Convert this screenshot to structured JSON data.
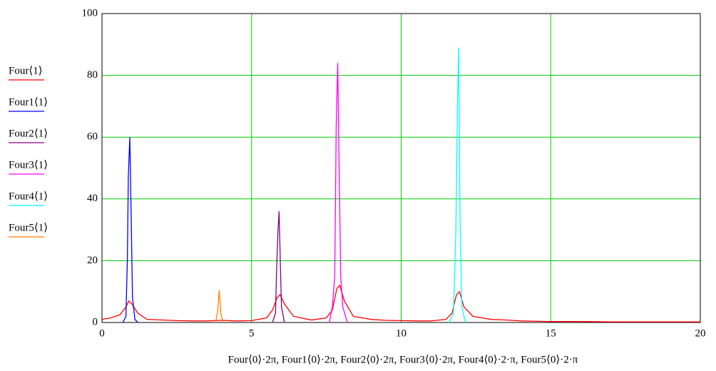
{
  "chart_data": {
    "type": "line",
    "x_label": "Four⟨0⟩·2π, Four1⟨0⟩·2π, Four2⟨0⟩·2π, Four3⟨0⟩·2π, Four4⟨0⟩·2·π, Four5⟨0⟩·2·π",
    "xlim": [
      0,
      20
    ],
    "xticks": [
      0,
      5,
      10,
      15,
      20
    ],
    "ylim": [
      0,
      100
    ],
    "yticks": [
      0,
      20,
      40,
      60,
      80,
      100
    ],
    "grid": true,
    "grid_color": "#00cc00",
    "legend": "left",
    "series": [
      {
        "name": "Four⟨1⟩",
        "color": "#ff0000",
        "x": [
          0,
          0.3,
          0.6,
          0.8,
          0.9,
          1.0,
          1.2,
          1.5,
          2,
          2.5,
          3,
          3.5,
          4,
          4.5,
          5,
          5.5,
          5.7,
          5.85,
          5.95,
          6.1,
          6.4,
          7,
          7.5,
          7.7,
          7.85,
          7.95,
          8.1,
          8.4,
          9,
          9.5,
          10,
          10.5,
          11,
          11.5,
          11.7,
          11.85,
          11.95,
          12.1,
          12.4,
          13,
          13.5,
          14,
          15,
          16,
          17,
          18,
          19,
          20
        ],
        "values": [
          1,
          1.5,
          2.5,
          5,
          7,
          6,
          3,
          1,
          0.8,
          0.6,
          0.5,
          0.5,
          0.7,
          0.5,
          0.6,
          1.5,
          4,
          8,
          9,
          6,
          2,
          0.8,
          1.5,
          4,
          11,
          12,
          7,
          2,
          1,
          0.7,
          0.6,
          0.5,
          0.5,
          1,
          3,
          9,
          10,
          5,
          2,
          1,
          0.8,
          0.5,
          0.3,
          0.3,
          0.2,
          0.2,
          0.2,
          0.2
        ]
      },
      {
        "name": "Four1⟨1⟩",
        "color": "#0000ff",
        "x": [
          0.7,
          0.8,
          0.85,
          0.88,
          0.93,
          0.98,
          1.02,
          1.1,
          1.2
        ],
        "values": [
          0,
          2,
          21,
          47,
          60,
          32,
          8,
          1,
          0
        ]
      },
      {
        "name": "Four2⟨1⟩",
        "color": "#800080",
        "x": [
          5.7,
          5.8,
          5.84,
          5.88,
          5.92,
          5.96,
          6.0,
          6.1
        ],
        "values": [
          0,
          3,
          18,
          29,
          36,
          20,
          5,
          0
        ]
      },
      {
        "name": "Four3⟨1⟩",
        "color": "#ff00ff",
        "x": [
          7.6,
          7.7,
          7.78,
          7.83,
          7.88,
          7.93,
          7.98,
          8.05,
          8.2
        ],
        "values": [
          0,
          5,
          15,
          64,
          84,
          48,
          15,
          5,
          0
        ]
      },
      {
        "name": "Four4⟨1⟩",
        "color": "#00ffff",
        "x": [
          11.6,
          11.75,
          11.83,
          11.88,
          11.92,
          11.97,
          12.03,
          12.15
        ],
        "values": [
          0,
          3,
          30,
          69,
          89,
          32,
          5,
          0
        ]
      },
      {
        "name": "Four5⟨1⟩",
        "color": "#ff8000",
        "x": [
          3.8,
          3.87,
          3.92,
          3.97,
          4.05
        ],
        "values": [
          0,
          4,
          10.5,
          3,
          0
        ]
      }
    ]
  }
}
